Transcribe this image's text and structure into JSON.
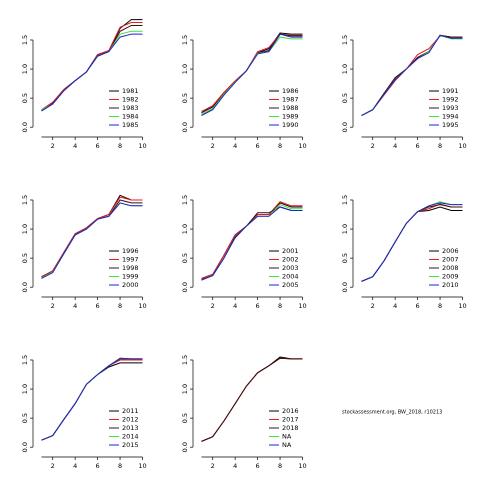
{
  "chart_data": [
    {
      "type": "line",
      "x": [
        1,
        2,
        3,
        4,
        5,
        6,
        7,
        8,
        9,
        10
      ],
      "xlim": [
        0.6,
        10.4
      ],
      "xticks": [
        2,
        4,
        6,
        8,
        10
      ],
      "ylim": [
        -0.1,
        1.93
      ],
      "yticks": [
        {
          "value": 0,
          "label": "0.0"
        },
        0.5,
        {
          "value": 1,
          "label": "1.0"
        },
        1.5
      ],
      "legend": "bottom-right",
      "series": [
        {
          "name": "1981",
          "color": "#000000",
          "values": [
            0.3,
            0.42,
            0.65,
            0.8,
            0.95,
            1.25,
            1.3,
            1.7,
            1.85,
            1.85
          ]
        },
        {
          "name": "1982",
          "color": "#e41a1c",
          "values": [
            0.3,
            0.43,
            0.65,
            0.8,
            0.95,
            1.25,
            1.32,
            1.72,
            1.8,
            1.8
          ]
        },
        {
          "name": "1983",
          "color": "#3a1010",
          "values": [
            0.28,
            0.4,
            0.63,
            0.8,
            0.95,
            1.22,
            1.3,
            1.65,
            1.75,
            1.75
          ]
        },
        {
          "name": "1984",
          "color": "#44dd44",
          "values": [
            0.3,
            0.4,
            0.63,
            0.8,
            0.95,
            1.23,
            1.3,
            1.6,
            1.65,
            1.65
          ]
        },
        {
          "name": "1985",
          "color": "#2222cc",
          "values": [
            0.28,
            0.4,
            0.63,
            0.8,
            0.95,
            1.23,
            1.3,
            1.55,
            1.6,
            1.6
          ]
        }
      ]
    },
    {
      "type": "line",
      "x": [
        1,
        2,
        3,
        4,
        5,
        6,
        7,
        8,
        9,
        10
      ],
      "xlim": [
        0.6,
        10.4
      ],
      "xticks": [
        2,
        4,
        6,
        8,
        10
      ],
      "ylim": [
        -0.1,
        1.93
      ],
      "yticks": [
        {
          "value": 0,
          "label": "0.0"
        },
        0.5,
        {
          "value": 1,
          "label": "1.0"
        },
        1.5
      ],
      "legend": "bottom-right",
      "series": [
        {
          "name": "1986",
          "color": "#000000",
          "values": [
            0.25,
            0.35,
            0.58,
            0.78,
            0.97,
            1.28,
            1.35,
            1.62,
            1.6,
            1.6
          ]
        },
        {
          "name": "1987",
          "color": "#e41a1c",
          "values": [
            0.27,
            0.37,
            0.6,
            0.8,
            0.97,
            1.3,
            1.37,
            1.6,
            1.58,
            1.58
          ]
        },
        {
          "name": "1988",
          "color": "#3a1010",
          "values": [
            0.22,
            0.32,
            0.57,
            0.78,
            0.97,
            1.27,
            1.32,
            1.6,
            1.57,
            1.57
          ]
        },
        {
          "name": "1989",
          "color": "#44dd44",
          "values": [
            0.22,
            0.32,
            0.57,
            0.78,
            0.97,
            1.27,
            1.3,
            1.55,
            1.52,
            1.52
          ]
        },
        {
          "name": "1990",
          "color": "#2222cc",
          "values": [
            0.2,
            0.3,
            0.55,
            0.77,
            0.97,
            1.26,
            1.3,
            1.6,
            1.55,
            1.55
          ]
        }
      ]
    },
    {
      "type": "line",
      "x": [
        1,
        2,
        3,
        4,
        5,
        6,
        7,
        8,
        9,
        10
      ],
      "xlim": [
        0.6,
        10.4
      ],
      "xticks": [
        2,
        4,
        6,
        8,
        10
      ],
      "ylim": [
        -0.1,
        1.93
      ],
      "yticks": [
        {
          "value": 0,
          "label": "0.0"
        },
        0.5,
        {
          "value": 1,
          "label": "1.0"
        },
        1.5
      ],
      "legend": "bottom-right",
      "series": [
        {
          "name": "1991",
          "color": "#000000",
          "values": [
            0.2,
            0.3,
            0.58,
            0.85,
            1.0,
            1.2,
            1.3,
            1.58,
            1.55,
            1.55
          ]
        },
        {
          "name": "1992",
          "color": "#e41a1c",
          "values": [
            0.2,
            0.3,
            0.55,
            0.8,
            1.0,
            1.25,
            1.35,
            1.57,
            1.55,
            1.55
          ]
        },
        {
          "name": "1993",
          "color": "#3a1010",
          "values": [
            0.2,
            0.3,
            0.58,
            0.85,
            1.0,
            1.2,
            1.3,
            1.58,
            1.55,
            1.55
          ]
        },
        {
          "name": "1994",
          "color": "#44dd44",
          "values": [
            0.2,
            0.3,
            0.56,
            0.82,
            1.0,
            1.18,
            1.3,
            1.58,
            1.52,
            1.52
          ]
        },
        {
          "name": "1995",
          "color": "#2222cc",
          "values": [
            0.2,
            0.3,
            0.56,
            0.82,
            1.0,
            1.18,
            1.28,
            1.58,
            1.53,
            1.53
          ]
        }
      ]
    },
    {
      "type": "line",
      "x": [
        1,
        2,
        3,
        4,
        5,
        6,
        7,
        8,
        9,
        10
      ],
      "xlim": [
        0.6,
        10.4
      ],
      "xticks": [
        2,
        4,
        6,
        8,
        10
      ],
      "ylim": [
        -0.1,
        1.93
      ],
      "yticks": [
        {
          "value": 0,
          "label": "0.0"
        },
        0.5,
        {
          "value": 1,
          "label": "1.0"
        },
        1.5
      ],
      "legend": "bottom-right",
      "series": [
        {
          "name": "1996",
          "color": "#000000",
          "values": [
            0.18,
            0.28,
            0.6,
            0.92,
            1.02,
            1.18,
            1.25,
            1.58,
            1.5,
            1.5
          ]
        },
        {
          "name": "1997",
          "color": "#e41a1c",
          "values": [
            0.18,
            0.28,
            0.6,
            0.92,
            1.02,
            1.18,
            1.25,
            1.55,
            1.5,
            1.5
          ]
        },
        {
          "name": "1998",
          "color": "#3a1010",
          "values": [
            0.16,
            0.26,
            0.58,
            0.9,
            1.0,
            1.17,
            1.22,
            1.5,
            1.45,
            1.45
          ]
        },
        {
          "name": "1999",
          "color": "#44dd44",
          "values": [
            0.16,
            0.26,
            0.58,
            0.9,
            1.0,
            1.17,
            1.22,
            1.45,
            1.4,
            1.4
          ]
        },
        {
          "name": "2000",
          "color": "#2222cc",
          "values": [
            0.15,
            0.25,
            0.58,
            0.9,
            1.0,
            1.17,
            1.22,
            1.45,
            1.4,
            1.4
          ]
        }
      ]
    },
    {
      "type": "line",
      "x": [
        1,
        2,
        3,
        4,
        5,
        6,
        7,
        8,
        9,
        10
      ],
      "xlim": [
        0.6,
        10.4
      ],
      "xticks": [
        2,
        4,
        6,
        8,
        10
      ],
      "ylim": [
        -0.1,
        1.93
      ],
      "yticks": [
        {
          "value": 0,
          "label": "0.0"
        },
        0.5,
        {
          "value": 1,
          "label": "1.0"
        },
        1.5
      ],
      "legend": "bottom-right",
      "series": [
        {
          "name": "2001",
          "color": "#000000",
          "values": [
            0.15,
            0.22,
            0.55,
            0.9,
            1.05,
            1.25,
            1.25,
            1.45,
            1.38,
            1.38
          ]
        },
        {
          "name": "2002",
          "color": "#e41a1c",
          "values": [
            0.15,
            0.22,
            0.55,
            0.9,
            1.05,
            1.25,
            1.25,
            1.47,
            1.4,
            1.4
          ]
        },
        {
          "name": "2003",
          "color": "#3a1010",
          "values": [
            0.12,
            0.2,
            0.5,
            0.85,
            1.05,
            1.28,
            1.28,
            1.38,
            1.32,
            1.32
          ]
        },
        {
          "name": "2004",
          "color": "#44dd44",
          "values": [
            0.13,
            0.2,
            0.5,
            0.87,
            1.05,
            1.22,
            1.22,
            1.42,
            1.35,
            1.35
          ]
        },
        {
          "name": "2005",
          "color": "#2222cc",
          "values": [
            0.13,
            0.2,
            0.5,
            0.87,
            1.05,
            1.22,
            1.22,
            1.38,
            1.32,
            1.32
          ]
        }
      ]
    },
    {
      "type": "line",
      "x": [
        1,
        2,
        3,
        4,
        5,
        6,
        7,
        8,
        9,
        10
      ],
      "xlim": [
        0.6,
        10.4
      ],
      "xticks": [
        2,
        4,
        6,
        8,
        10
      ],
      "ylim": [
        -0.1,
        1.93
      ],
      "yticks": [
        {
          "value": 0,
          "label": "0.0"
        },
        0.5,
        {
          "value": 1,
          "label": "1.0"
        },
        1.5
      ],
      "legend": "bottom-right",
      "series": [
        {
          "name": "2006",
          "color": "#000000",
          "values": [
            0.1,
            0.18,
            0.45,
            0.78,
            1.1,
            1.3,
            1.32,
            1.38,
            1.32,
            1.32
          ]
        },
        {
          "name": "2007",
          "color": "#e41a1c",
          "values": [
            0.1,
            0.18,
            0.45,
            0.78,
            1.1,
            1.3,
            1.35,
            1.43,
            1.38,
            1.38
          ]
        },
        {
          "name": "2008",
          "color": "#3a1010",
          "values": [
            0.1,
            0.18,
            0.45,
            0.78,
            1.1,
            1.3,
            1.38,
            1.42,
            1.38,
            1.38
          ]
        },
        {
          "name": "2009",
          "color": "#44dd44",
          "values": [
            0.1,
            0.18,
            0.45,
            0.78,
            1.1,
            1.3,
            1.4,
            1.47,
            1.42,
            1.42
          ]
        },
        {
          "name": "2010",
          "color": "#2222cc",
          "values": [
            0.1,
            0.18,
            0.45,
            0.78,
            1.1,
            1.3,
            1.4,
            1.45,
            1.42,
            1.42
          ]
        }
      ]
    },
    {
      "type": "line",
      "x": [
        1,
        2,
        3,
        4,
        5,
        6,
        7,
        8,
        9,
        10
      ],
      "xlim": [
        0.6,
        10.4
      ],
      "xticks": [
        2,
        4,
        6,
        8,
        10
      ],
      "ylim": [
        -0.1,
        1.93
      ],
      "yticks": [
        {
          "value": 0,
          "label": "0.0"
        },
        0.5,
        {
          "value": 1,
          "label": "1.0"
        },
        1.5
      ],
      "legend": "bottom-right",
      "series": [
        {
          "name": "2011",
          "color": "#000000",
          "values": [
            0.12,
            0.2,
            0.48,
            0.75,
            1.08,
            1.25,
            1.38,
            1.45,
            1.45,
            1.45
          ]
        },
        {
          "name": "2012",
          "color": "#e41a1c",
          "values": [
            0.12,
            0.2,
            0.48,
            0.75,
            1.08,
            1.25,
            1.4,
            1.5,
            1.5,
            1.5
          ]
        },
        {
          "name": "2013",
          "color": "#3a1010",
          "values": [
            0.12,
            0.2,
            0.48,
            0.75,
            1.08,
            1.25,
            1.4,
            1.52,
            1.52,
            1.52
          ]
        },
        {
          "name": "2014",
          "color": "#44dd44",
          "values": [
            0.12,
            0.2,
            0.48,
            0.75,
            1.08,
            1.25,
            1.4,
            1.53,
            1.52,
            1.52
          ]
        },
        {
          "name": "2015",
          "color": "#2222cc",
          "values": [
            0.12,
            0.2,
            0.48,
            0.75,
            1.08,
            1.25,
            1.4,
            1.53,
            1.52,
            1.52
          ]
        }
      ]
    },
    {
      "type": "line",
      "x": [
        1,
        2,
        3,
        4,
        5,
        6,
        7,
        8,
        9,
        10
      ],
      "xlim": [
        0.6,
        10.4
      ],
      "xticks": [
        2,
        4,
        6,
        8,
        10
      ],
      "ylim": [
        -0.1,
        1.93
      ],
      "yticks": [
        {
          "value": 0,
          "label": "0.0"
        },
        0.5,
        {
          "value": 1,
          "label": "1.0"
        },
        1.5
      ],
      "legend": "bottom-right",
      "series": [
        {
          "name": "2016",
          "color": "#000000",
          "values": [
            0.1,
            0.18,
            0.45,
            0.75,
            1.05,
            1.28,
            1.4,
            1.55,
            1.52,
            1.52
          ]
        },
        {
          "name": "2017",
          "color": "#e41a1c",
          "values": [
            0.1,
            0.18,
            0.45,
            0.75,
            1.05,
            1.28,
            1.4,
            1.53,
            1.52,
            1.52
          ]
        },
        {
          "name": "2018",
          "color": "#3a1010",
          "values": [
            0.1,
            0.18,
            0.45,
            0.75,
            1.05,
            1.28,
            1.4,
            1.53,
            1.52,
            1.52
          ]
        },
        {
          "name": "NA",
          "color": "#44dd44",
          "values": [
            null,
            null,
            null,
            null,
            null,
            null,
            null,
            null,
            null,
            null
          ]
        },
        {
          "name": "NA",
          "color": "#2222cc",
          "values": [
            null,
            null,
            null,
            null,
            null,
            null,
            null,
            null,
            null,
            null
          ]
        }
      ]
    }
  ],
  "footer": "stockassessment.org, BW_2018, r10213"
}
